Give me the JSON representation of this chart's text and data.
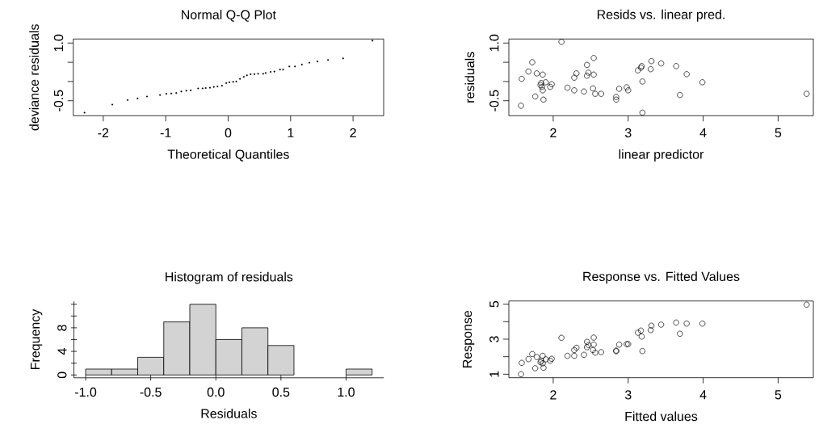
{
  "chart_data": [
    {
      "type": "scatter",
      "title": "Normal Q-Q Plot",
      "xlabel": "Theoretical Quantiles",
      "ylabel": "deviance residuals",
      "color": "#000000",
      "marker": "square",
      "x": [
        -2.3,
        -1.855,
        -1.61,
        -1.45,
        -1.3,
        -1.09,
        -0.99,
        -0.91,
        -0.83,
        -0.75,
        -0.67,
        -0.6,
        -0.48,
        -0.41,
        -0.36,
        -0.29,
        -0.23,
        -0.17,
        -0.1,
        -0.03,
        0.02,
        0.08,
        0.13,
        0.19,
        0.25,
        0.3,
        0.36,
        0.42,
        0.48,
        0.56,
        0.6,
        0.68,
        0.74,
        0.83,
        0.88,
        0.98,
        1.07,
        1.18,
        1.3,
        1.43,
        1.6,
        1.84,
        2.31
      ],
      "values": [
        -0.81,
        -0.6,
        -0.48,
        -0.44,
        -0.39,
        -0.35,
        -0.32,
        -0.31,
        -0.3,
        -0.26,
        -0.24,
        -0.23,
        -0.18,
        -0.18,
        -0.17,
        -0.16,
        -0.14,
        -0.13,
        -0.11,
        -0.04,
        -0.02,
        -0.01,
        0.0,
        0.07,
        0.12,
        0.16,
        0.19,
        0.19,
        0.2,
        0.2,
        0.22,
        0.25,
        0.26,
        0.31,
        0.31,
        0.39,
        0.39,
        0.44,
        0.49,
        0.52,
        0.56,
        0.6,
        1.06
      ],
      "xlim": [
        -2.48,
        2.49
      ],
      "ylim": [
        -0.89,
        1.105
      ],
      "xticks": [
        -2,
        -1,
        0,
        1,
        2
      ],
      "yticks": [
        -0.5,
        {
          "value": 0,
          "label": null
        },
        {
          "value": 0.5,
          "label": null
        },
        {
          "value": 1.0,
          "label": "1.0"
        }
      ]
    },
    {
      "type": "scatter",
      "title": "Resids vs. linear pred.",
      "xlabel": "linear predictor",
      "ylabel": "residuals",
      "color": "#000000",
      "marker": "circle",
      "x": [
        1.57,
        1.58,
        1.67,
        1.72,
        1.76,
        1.78,
        1.83,
        1.84,
        1.85,
        1.86,
        1.86,
        1.87,
        1.9,
        1.96,
        1.98,
        2.11,
        2.19,
        2.28,
        2.28,
        2.31,
        2.41,
        2.45,
        2.45,
        2.47,
        2.53,
        2.54,
        2.54,
        2.56,
        2.64,
        2.84,
        2.84,
        2.88,
        2.98,
        3.0,
        3.13,
        3.17,
        3.18,
        3.19,
        3.19,
        3.3,
        3.31,
        3.44,
        3.64,
        3.69,
        3.78,
        3.99,
        5.38
      ],
      "values": [
        -0.63,
        0.07,
        0.26,
        0.5,
        -0.39,
        0.21,
        -0.09,
        -0.04,
        -0.14,
        -0.23,
        0.18,
        -0.47,
        -0.02,
        -0.14,
        -0.07,
        1.03,
        -0.16,
        -0.23,
        0.1,
        0.21,
        -0.26,
        0.43,
        0.15,
        0.23,
        -0.18,
        0.18,
        0.61,
        -0.32,
        -0.32,
        -0.4,
        -0.47,
        -0.19,
        -0.15,
        -0.23,
        0.29,
        0.36,
        0.4,
        0.0,
        -0.81,
        0.32,
        0.53,
        0.47,
        0.4,
        -0.35,
        0.19,
        -0.02,
        -0.32
      ],
      "xlim": [
        1.408,
        5.47
      ],
      "ylim": [
        -0.89,
        1.105
      ],
      "xticks": [
        2,
        3,
        4,
        5
      ],
      "yticks": [
        -0.5,
        {
          "value": 0,
          "label": null
        },
        {
          "value": 0.5,
          "label": null
        },
        {
          "value": 1.0,
          "label": "1.0"
        }
      ]
    },
    {
      "type": "histogram",
      "title": "Histogram of residuals",
      "xlabel": "Residuals",
      "ylabel": "Frequency",
      "color": "#d3d3d3",
      "bins": [
        -1.0,
        -0.8,
        -0.6,
        -0.4,
        -0.2,
        0.0,
        0.2,
        0.4,
        0.6,
        0.8,
        1.0,
        1.2
      ],
      "values": [
        1,
        1,
        3,
        9,
        12,
        6,
        8,
        5,
        0,
        0,
        1
      ],
      "xlim": [
        -1.09,
        1.29
      ],
      "ylim": [
        -0.48,
        12.48
      ],
      "xticks": [
        {
          "value": -1.0,
          "label": "-1.0"
        },
        -0.5,
        {
          "value": 0,
          "label": "0.0"
        },
        0.5,
        {
          "value": 1.0,
          "label": "1.0"
        }
      ],
      "yticks": [
        0,
        {
          "value": 2,
          "label": null
        },
        4,
        {
          "value": 6,
          "label": null
        },
        8,
        {
          "value": 10,
          "label": null
        },
        {
          "value": 12,
          "label": null
        }
      ]
    },
    {
      "type": "scatter",
      "title": "Response vs. Fitted Values",
      "xlabel": "Fitted values",
      "ylabel": "Response",
      "color": "#000000",
      "marker": "circle",
      "x": [
        1.57,
        1.58,
        1.67,
        1.72,
        1.76,
        1.78,
        1.83,
        1.84,
        1.86,
        1.87,
        1.86,
        1.9,
        1.96,
        1.98,
        2.11,
        2.19,
        2.28,
        2.28,
        2.31,
        2.41,
        2.45,
        2.45,
        2.47,
        2.53,
        2.54,
        2.54,
        2.56,
        2.64,
        2.84,
        2.84,
        2.88,
        2.98,
        3.0,
        3.13,
        3.17,
        3.18,
        3.19,
        3.3,
        3.31,
        3.44,
        3.64,
        3.69,
        3.78,
        3.99,
        5.38
      ],
      "values": [
        1.0,
        1.65,
        1.86,
        2.15,
        1.34,
        1.98,
        1.68,
        1.77,
        1.62,
        1.37,
        2.05,
        1.85,
        1.77,
        1.88,
        3.08,
        2.05,
        2.05,
        2.38,
        2.51,
        2.11,
        2.85,
        2.54,
        2.66,
        2.38,
        2.69,
        3.09,
        2.23,
        2.26,
        2.35,
        2.31,
        2.69,
        2.72,
        2.72,
        3.37,
        3.49,
        3.15,
        2.32,
        3.52,
        3.77,
        3.83,
        3.95,
        3.31,
        3.89,
        3.89,
        4.97
      ],
      "xlim": [
        1.408,
        5.47
      ],
      "ylim": [
        0.8,
        5.18
      ],
      "xticks": [
        2,
        3,
        4,
        5
      ],
      "yticks": [
        1,
        {
          "value": 2,
          "label": null
        },
        3,
        {
          "value": 4,
          "label": null
        },
        5
      ]
    }
  ]
}
